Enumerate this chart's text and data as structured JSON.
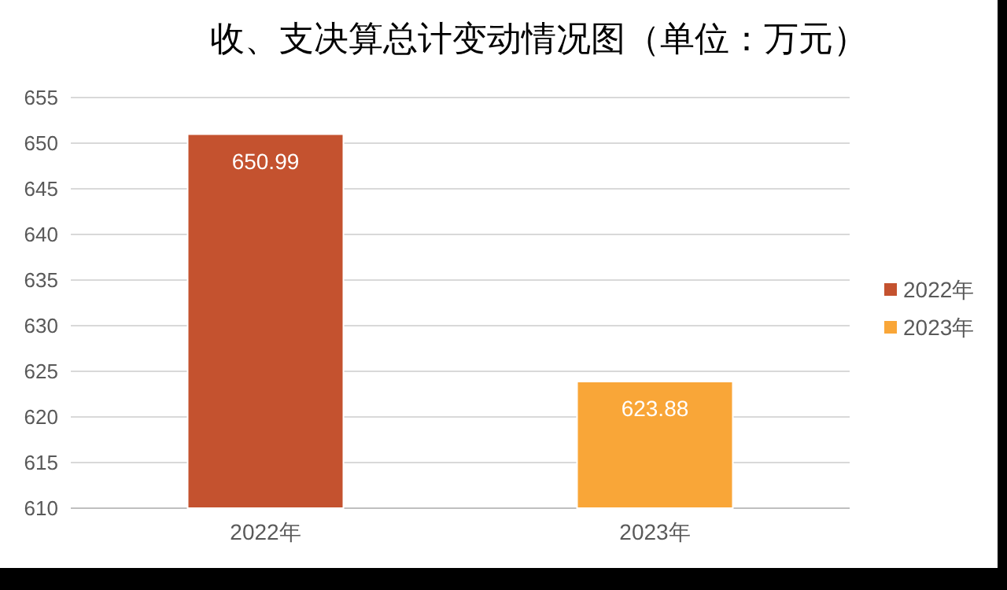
{
  "chart_data": {
    "type": "bar",
    "title": "收、支决算总计变动情况图（单位：万元）",
    "categories": [
      "2022年",
      "2023年"
    ],
    "series": [
      {
        "name": "2022年",
        "color": "#c4522f",
        "values": [
          650.99,
          null
        ]
      },
      {
        "name": "2023年",
        "color": "#f9a638",
        "values": [
          null,
          623.88
        ]
      }
    ],
    "ylim": [
      610,
      655
    ],
    "yticks": [
      610,
      615,
      620,
      625,
      630,
      635,
      640,
      645,
      650,
      655
    ],
    "grid": "y",
    "legend": "right",
    "data_labels": true
  }
}
